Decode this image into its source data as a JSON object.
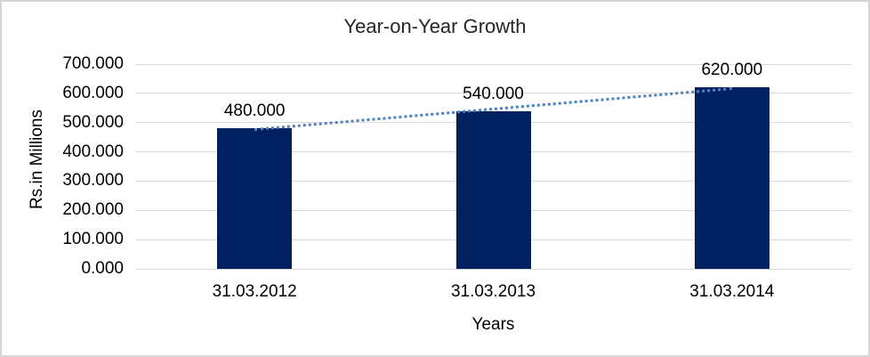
{
  "chart_data": {
    "type": "bar",
    "title": "Year-on-Year Growth",
    "xlabel": "Years",
    "ylabel": "Rs.in Millions",
    "categories": [
      "31.03.2012",
      "31.03.2013",
      "31.03.2014"
    ],
    "series": [
      {
        "name": "Growth",
        "values": [
          480,
          540,
          620
        ],
        "data_labels": [
          "480.000",
          "540.000",
          "620.000"
        ],
        "color": "#002060"
      }
    ],
    "yticks": [
      {
        "value": 0,
        "label": "0.000"
      },
      {
        "value": 100,
        "label": "100.000"
      },
      {
        "value": 200,
        "label": "200.000"
      },
      {
        "value": 300,
        "label": "300.000"
      },
      {
        "value": 400,
        "label": "400.000"
      },
      {
        "value": 500,
        "label": "500.000"
      },
      {
        "value": 600,
        "label": "600.000"
      },
      {
        "value": 700,
        "label": "700.000"
      }
    ],
    "ylim": [
      0,
      700
    ],
    "grid": true,
    "legend": "none",
    "trendline": {
      "type": "linear",
      "style": "dotted",
      "color": "#4f81bd"
    }
  },
  "colors": {
    "bar": "#002060",
    "trendline": "#4f81bd",
    "gridline": "#d9d9d9",
    "frame_border": "#d6d6d6",
    "title_text": "#262626",
    "label_text": "#000000"
  }
}
